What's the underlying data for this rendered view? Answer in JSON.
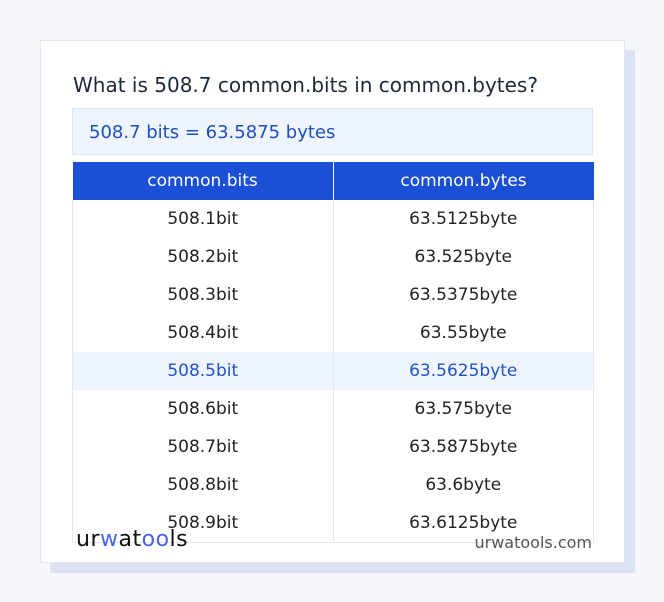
{
  "title": "What is 508.7 common.bits in common.bytes?",
  "result": "508.7 bits = 63.5875 bytes",
  "table": {
    "headers": [
      "common.bits",
      "common.bytes"
    ],
    "rows": [
      [
        "508.1bit",
        "63.5125byte"
      ],
      [
        "508.2bit",
        "63.525byte"
      ],
      [
        "508.3bit",
        "63.5375byte"
      ],
      [
        "508.4bit",
        "63.55byte"
      ],
      [
        "508.5bit",
        "63.5625byte"
      ],
      [
        "508.6bit",
        "63.575byte"
      ],
      [
        "508.7bit",
        "63.5875byte"
      ],
      [
        "508.8bit",
        "63.6byte"
      ],
      [
        "508.9bit",
        "63.6125byte"
      ]
    ],
    "highlighted_row": 4
  },
  "footer": {
    "logo": "urwatools",
    "site": "urwatools.com"
  },
  "colors": {
    "accent": "#1a4fd6",
    "highlight_bg": "#eef5fe"
  }
}
